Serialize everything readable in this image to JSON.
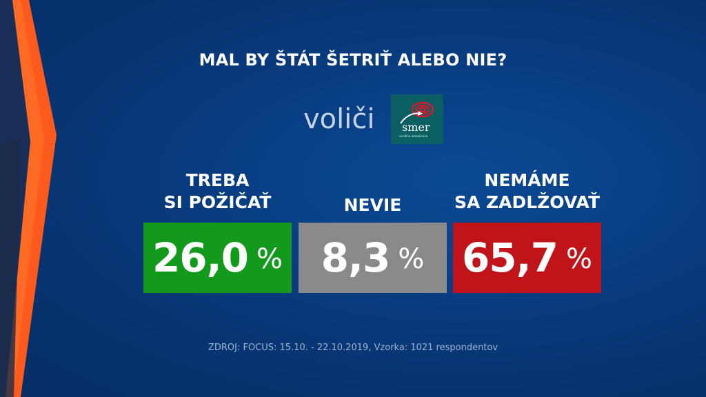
{
  "title": "MAL BY ŠTÁT ŠETRIŤ ALEBO NIE?",
  "subtitle": "voliči",
  "logo": {
    "text": "smer",
    "subtext": "sociálna demokracia"
  },
  "chart_data": {
    "type": "bar",
    "title": "MAL BY ŠTÁT ŠETRIŤ ALEBO NIE?",
    "categories": [
      "TREBA SI POŽIČAŤ",
      "NEVIE",
      "NEMÁME SA ZADLŽOVAŤ"
    ],
    "values": [
      26.0,
      8.3,
      65.7
    ],
    "labels": [
      "26,0",
      "8,3",
      "65,7"
    ],
    "unit": "%",
    "colors": [
      "#139a1d",
      "#8a8a8a",
      "#c0141a"
    ],
    "category_lines": [
      [
        "TREBA",
        "SI POŽIČAŤ"
      ],
      [
        "NEVIE"
      ],
      [
        "NEMÁME",
        "SA ZADLŽOVAŤ"
      ]
    ]
  },
  "source": "ZDROJ: FOCUS: 15.10. - 22.10.2019, Vzorka: 1021 respondentov",
  "colors": {
    "background": "#083a7c",
    "accent_orange": "#ff5a1e"
  }
}
